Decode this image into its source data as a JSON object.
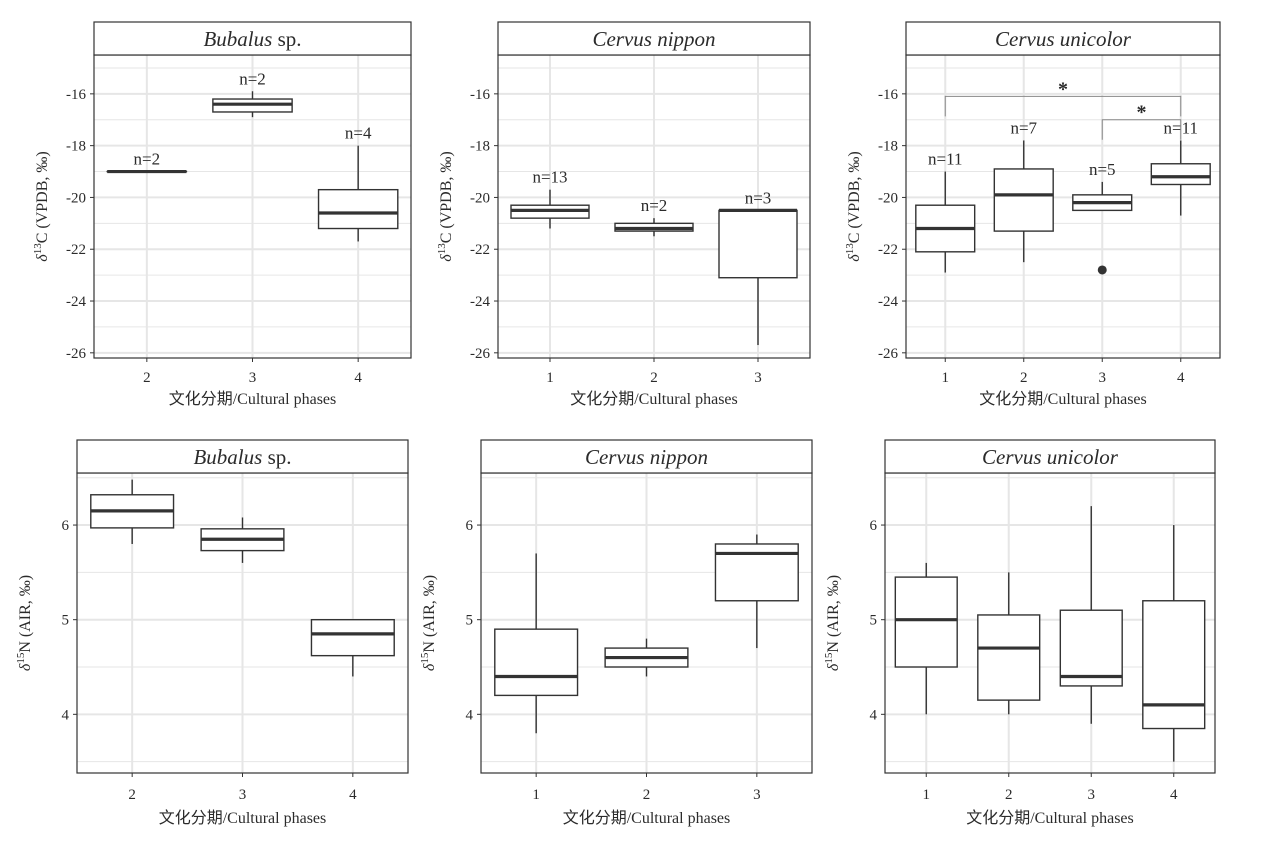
{
  "figure": {
    "colors": {
      "background": "#ffffff",
      "grid": "#e6e6e6",
      "box": "#333333",
      "strip": "#ffffff"
    }
  },
  "chart_data": [
    {
      "type": "box",
      "title": "Bubalus sp.",
      "title_italic": "Bubalus",
      "title_suffix": " sp.",
      "ylabel": "δ13C (VPDB, ‰)",
      "ylabel_html": [
        "δ",
        "13",
        "C (VPDB, ‰)"
      ],
      "xlabel": "文化分期/Cultural phases",
      "ylim": [
        -26.2,
        -14.5
      ],
      "yticks": [
        -16,
        -18,
        -20,
        -22,
        -24,
        -26
      ],
      "ytick_labels": [
        "-16",
        "-18",
        "-20",
        "-22",
        "-24",
        "-26"
      ],
      "categories": [
        "2",
        "3",
        "4"
      ],
      "boxes": [
        {
          "category": "2",
          "q1": -19.0,
          "median": -19.0,
          "q3": -19.0,
          "whisker_low": -19.0,
          "whisker_high": -19.0,
          "n": "n=2",
          "outliers": []
        },
        {
          "category": "3",
          "q1": -16.7,
          "median": -16.4,
          "q3": -16.2,
          "whisker_low": -16.9,
          "whisker_high": -15.9,
          "n": "n=2",
          "outliers": []
        },
        {
          "category": "4",
          "q1": -21.2,
          "median": -20.6,
          "q3": -19.7,
          "whisker_low": -21.7,
          "whisker_high": -18.0,
          "n": "n=4",
          "outliers": []
        }
      ],
      "significance": []
    },
    {
      "type": "box",
      "title": "Cervus nippon",
      "title_italic": "Cervus nippon",
      "title_suffix": "",
      "ylabel": "δ13C (VPDB, ‰)",
      "ylabel_html": [
        "δ",
        "13",
        "C (VPDB, ‰)"
      ],
      "xlabel": "文化分期/Cultural phases",
      "ylim": [
        -26.2,
        -14.5
      ],
      "yticks": [
        -16,
        -18,
        -20,
        -22,
        -24,
        -26
      ],
      "ytick_labels": [
        "-16",
        "-18",
        "-20",
        "-22",
        "-24",
        "-26"
      ],
      "categories": [
        "1",
        "2",
        "3"
      ],
      "boxes": [
        {
          "category": "1",
          "q1": -20.8,
          "median": -20.5,
          "q3": -20.3,
          "whisker_low": -21.2,
          "whisker_high": -19.7,
          "n": "n=13",
          "outliers": []
        },
        {
          "category": "2",
          "q1": -21.3,
          "median": -21.2,
          "q3": -21.0,
          "whisker_low": -21.5,
          "whisker_high": -20.8,
          "n": "n=2",
          "outliers": []
        },
        {
          "category": "3",
          "q1": -23.1,
          "median": -20.5,
          "q3": -20.5,
          "whisker_low": -25.7,
          "whisker_high": -20.5,
          "n": "n=3",
          "outliers": []
        }
      ],
      "significance": []
    },
    {
      "type": "box",
      "title": "Cervus unicolor",
      "title_italic": "Cervus unicolor",
      "title_suffix": "",
      "ylabel": "δ13C (VPDB, ‰)",
      "ylabel_html": [
        "δ",
        "13",
        "C (VPDB, ‰)"
      ],
      "xlabel": "文化分期/Cultural phases",
      "ylim": [
        -26.2,
        -14.5
      ],
      "yticks": [
        -16,
        -18,
        -20,
        -22,
        -24,
        -26
      ],
      "ytick_labels": [
        "-16",
        "-18",
        "-20",
        "-22",
        "-24",
        "-26"
      ],
      "categories": [
        "1",
        "2",
        "3",
        "4"
      ],
      "boxes": [
        {
          "category": "1",
          "q1": -22.1,
          "median": -21.2,
          "q3": -20.3,
          "whisker_low": -22.9,
          "whisker_high": -19.0,
          "n": "n=11",
          "outliers": []
        },
        {
          "category": "2",
          "q1": -21.3,
          "median": -19.9,
          "q3": -18.9,
          "whisker_low": -22.5,
          "whisker_high": -17.8,
          "n": "n=7",
          "outliers": []
        },
        {
          "category": "3",
          "q1": -20.5,
          "median": -20.2,
          "q3": -19.9,
          "whisker_low": -20.5,
          "whisker_high": -19.4,
          "n": "n=5",
          "outliers": [
            -22.8
          ]
        },
        {
          "category": "4",
          "q1": -19.5,
          "median": -19.2,
          "q3": -18.7,
          "whisker_low": -20.7,
          "whisker_high": -17.8,
          "n": "n=11",
          "outliers": []
        }
      ],
      "significance": [
        {
          "from": "1",
          "to": "4",
          "y": -16.1,
          "label": "*"
        },
        {
          "from": "3",
          "to": "4",
          "y": -17.0,
          "label": "*"
        }
      ]
    },
    {
      "type": "box",
      "title": "Bubalus sp.",
      "title_italic": "Bubalus",
      "title_suffix": " sp.",
      "ylabel": "δ15N (AIR, ‰)",
      "ylabel_html": [
        "δ",
        "15",
        "N (AIR, ‰)"
      ],
      "xlabel": "文化分期/Cultural phases",
      "ylim": [
        3.38,
        6.55
      ],
      "yticks": [
        4,
        5,
        6
      ],
      "ytick_labels": [
        "4",
        "5",
        "6"
      ],
      "categories": [
        "2",
        "3",
        "4"
      ],
      "boxes": [
        {
          "category": "2",
          "q1": 5.97,
          "median": 6.15,
          "q3": 6.32,
          "whisker_low": 5.8,
          "whisker_high": 6.48,
          "outliers": []
        },
        {
          "category": "3",
          "q1": 5.73,
          "median": 5.85,
          "q3": 5.96,
          "whisker_low": 5.6,
          "whisker_high": 6.08,
          "outliers": []
        },
        {
          "category": "4",
          "q1": 4.62,
          "median": 4.85,
          "q3": 5.0,
          "whisker_low": 4.4,
          "whisker_high": 5.0,
          "outliers": []
        }
      ],
      "significance": []
    },
    {
      "type": "box",
      "title": "Cervus nippon",
      "title_italic": "Cervus nippon",
      "title_suffix": "",
      "ylabel": "δ15N (AIR, ‰)",
      "ylabel_html": [
        "δ",
        "15",
        "N (AIR, ‰)"
      ],
      "xlabel": "文化分期/Cultural phases",
      "ylim": [
        3.38,
        6.55
      ],
      "yticks": [
        4,
        5,
        6
      ],
      "ytick_labels": [
        "4",
        "5",
        "6"
      ],
      "categories": [
        "1",
        "2",
        "3"
      ],
      "boxes": [
        {
          "category": "1",
          "q1": 4.2,
          "median": 4.4,
          "q3": 4.9,
          "whisker_low": 3.8,
          "whisker_high": 5.7,
          "outliers": []
        },
        {
          "category": "2",
          "q1": 4.5,
          "median": 4.6,
          "q3": 4.7,
          "whisker_low": 4.4,
          "whisker_high": 4.8,
          "outliers": []
        },
        {
          "category": "3",
          "q1": 5.2,
          "median": 5.7,
          "q3": 5.8,
          "whisker_low": 4.7,
          "whisker_high": 5.9,
          "outliers": []
        }
      ],
      "significance": []
    },
    {
      "type": "box",
      "title": "Cervus unicolor",
      "title_italic": "Cervus unicolor",
      "title_suffix": "",
      "ylabel": "δ15N (AIR, ‰)",
      "ylabel_html": [
        "δ",
        "15",
        "N (AIR, ‰)"
      ],
      "xlabel": "文化分期/Cultural phases",
      "ylim": [
        3.38,
        6.55
      ],
      "yticks": [
        4,
        5,
        6
      ],
      "ytick_labels": [
        "4",
        "5",
        "6"
      ],
      "categories": [
        "1",
        "2",
        "3",
        "4"
      ],
      "boxes": [
        {
          "category": "1",
          "q1": 4.5,
          "median": 5.0,
          "q3": 5.45,
          "whisker_low": 4.0,
          "whisker_high": 5.6,
          "outliers": []
        },
        {
          "category": "2",
          "q1": 4.15,
          "median": 4.7,
          "q3": 5.05,
          "whisker_low": 4.0,
          "whisker_high": 5.5,
          "outliers": []
        },
        {
          "category": "3",
          "q1": 4.3,
          "median": 4.4,
          "q3": 5.1,
          "whisker_low": 3.9,
          "whisker_high": 6.2,
          "outliers": []
        },
        {
          "category": "4",
          "q1": 3.85,
          "median": 4.1,
          "q3": 5.2,
          "whisker_low": 3.5,
          "whisker_high": 6.0,
          "outliers": []
        }
      ],
      "significance": []
    }
  ]
}
